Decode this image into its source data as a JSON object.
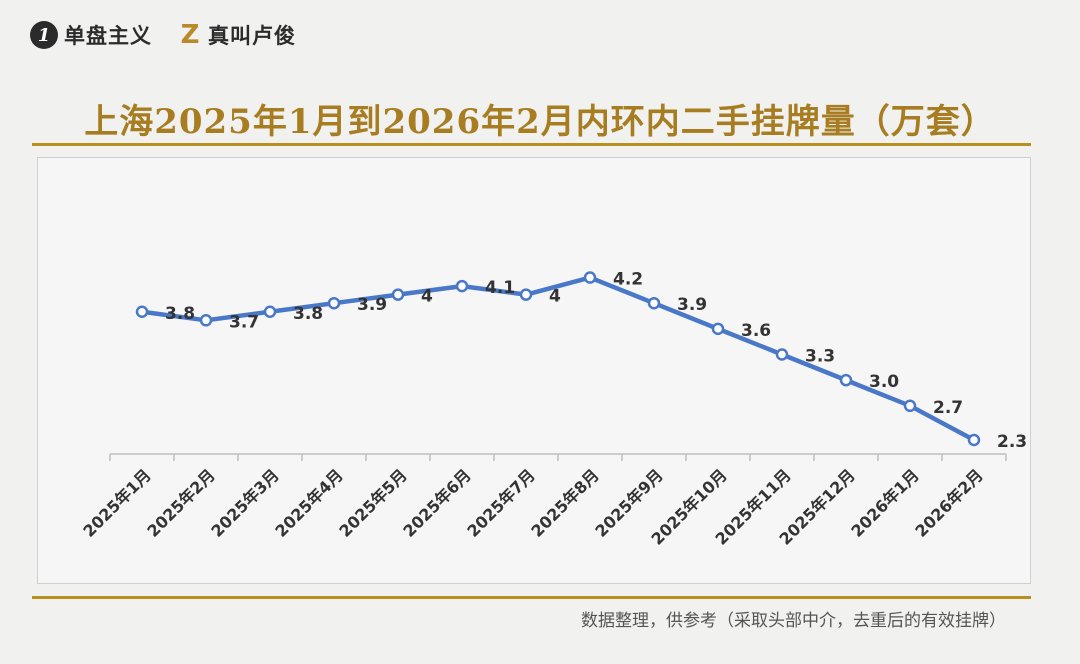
{
  "brand": {
    "badge_text": "1",
    "name1": "单盘主义",
    "logo2_text": "Z",
    "name2": "真叫卢俊"
  },
  "title": "上海2025年1月到2026年2月内环内二手挂牌量（万套）",
  "footer": "数据整理，供参考（采取头部中介，去重后的有效挂牌）",
  "colors": {
    "line": "#4a78c8",
    "title": "#a87d21",
    "rule": "#b8901f",
    "axis": "#bfbfbf",
    "label": "#333333"
  },
  "chart_data": {
    "type": "line",
    "title": "上海2025年1月到2026年2月内环内二手挂牌量（万套）",
    "categories": [
      "2025年1月",
      "2025年2月",
      "2025年3月",
      "2025年4月",
      "2025年5月",
      "2025年6月",
      "2025年7月",
      "2025年8月",
      "2025年9月",
      "2025年10月",
      "2025年11月",
      "2025年12月",
      "2026年1月",
      "2026年2月"
    ],
    "series": [
      {
        "name": "",
        "values": [
          3.8,
          3.7,
          3.8,
          3.9,
          4.0,
          4.1,
          4.0,
          4.2,
          3.9,
          3.6,
          3.3,
          3.0,
          2.7,
          2.3
        ],
        "labels": [
          "3.8",
          "3.7",
          "3.8",
          "3.9",
          "4",
          "4.1",
          "4",
          "4.2",
          "3.9",
          "3.6",
          "3.3",
          "3.0",
          "2.7",
          "2.3"
        ]
      }
    ],
    "grid": false,
    "legend": "none",
    "y_axis_visible": false
  }
}
